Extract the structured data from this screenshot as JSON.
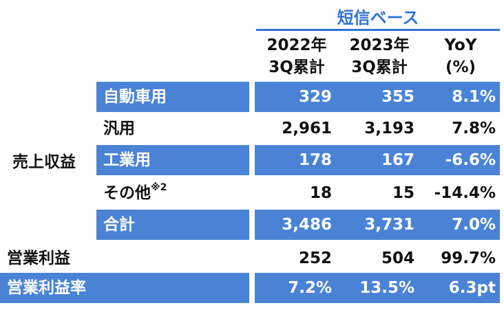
{
  "header": {
    "group_title": "短信ベース",
    "col1_line1": "2022年",
    "col1_line2": "3Q累計",
    "col2_line1": "2023年",
    "col2_line2": "3Q累計",
    "col3_line1": "YoY",
    "col3_line2": "(%)"
  },
  "section_label": "売上収益",
  "rows": [
    {
      "label": "自動車用",
      "v2022": "329",
      "v2023": "355",
      "yoy": "8.1%"
    },
    {
      "label": "汎用",
      "v2022": "2,961",
      "v2023": "3,193",
      "yoy": "7.8%"
    },
    {
      "label": "工業用",
      "v2022": "178",
      "v2023": "167",
      "yoy": "-6.6%"
    },
    {
      "label": "その他",
      "note": "※2",
      "v2022": "18",
      "v2023": "15",
      "yoy": "-14.4%"
    },
    {
      "label": "合計",
      "v2022": "3,486",
      "v2023": "3,731",
      "yoy": "7.0%"
    }
  ],
  "operating_profit": {
    "label": "営業利益",
    "v2022": "252",
    "v2023": "504",
    "yoy": "99.7%"
  },
  "operating_margin": {
    "label": "営業利益率",
    "v2022": "7.2%",
    "v2023": "13.5%",
    "yoy": "6.3pt"
  },
  "colors": {
    "row_fill": "#4a83d6",
    "title": "#2f73d8",
    "text": "#111111"
  }
}
